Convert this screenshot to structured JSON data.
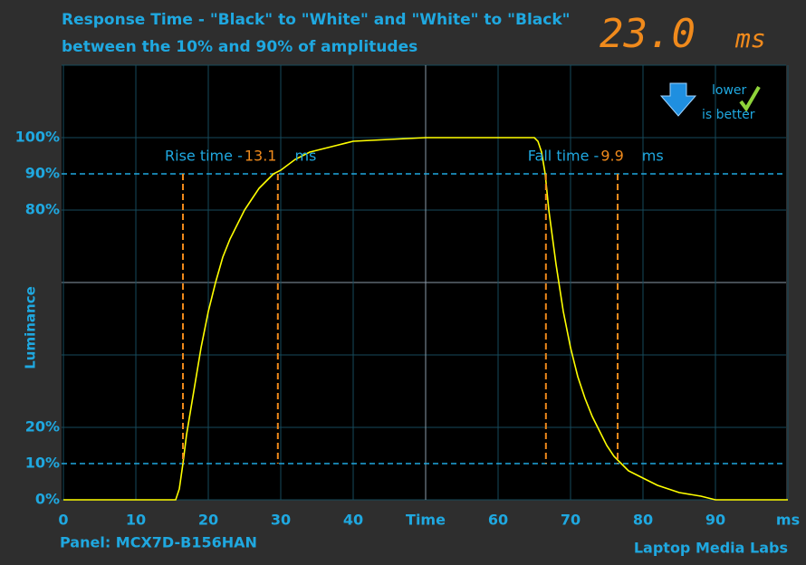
{
  "chart_data": {
    "type": "line",
    "title": "Response Time - \"Black\" to \"White\" and \"White\" to \"Black\"",
    "subtitle": "between the 10% and 90% of amplitudes",
    "result": {
      "value": 23,
      "label": "23.0",
      "unit": "ms"
    },
    "badge": [
      "lower",
      "is better"
    ],
    "y_label": "Luminance",
    "panel": "Panel: MCX7D-B156HAN",
    "credit": "Laptop Media Labs",
    "xlim": [
      0,
      100
    ],
    "ylim": [
      0,
      120
    ],
    "xticks": [
      0,
      10,
      20,
      30,
      40,
      {
        "value": 50,
        "label": "Time"
      },
      60,
      70,
      80,
      90,
      {
        "value": 100,
        "label": "ms"
      }
    ],
    "yticks": [
      {
        "value": 0,
        "label": "0%"
      },
      {
        "value": 10,
        "label": "10%"
      },
      {
        "value": 20,
        "label": "20%"
      },
      {
        "value": 80,
        "label": "80%"
      },
      {
        "value": 90,
        "label": "90%"
      },
      {
        "value": 100,
        "label": "100%"
      }
    ],
    "thresholds": [
      10,
      90
    ],
    "markers": [
      {
        "label": "Rise time - ",
        "value": 13.1,
        "unit": "ms",
        "start": 16.5,
        "end": 29.6
      },
      {
        "label": "Fall time - ",
        "value": 9.9,
        "unit": "ms",
        "start": 66.6,
        "end": 76.5
      }
    ],
    "x": [
      0,
      15,
      15.5,
      16,
      16.5,
      17,
      18,
      19,
      20,
      21,
      22,
      23,
      24,
      25,
      26,
      27,
      28,
      29,
      30,
      32,
      34,
      36,
      38,
      40,
      45,
      50,
      60,
      65,
      65.5,
      66,
      66.5,
      67,
      68,
      69,
      70,
      71,
      72,
      73,
      74,
      75,
      76,
      77,
      78,
      80,
      82,
      85,
      88,
      90,
      100
    ],
    "series": [
      {
        "color": "#ffff00",
        "values": [
          0,
          0,
          0,
          3,
          10,
          18,
          30,
          42,
          52,
          60,
          67,
          72,
          76,
          80,
          83,
          86,
          88,
          90,
          91,
          94,
          96,
          97,
          98,
          99,
          99.5,
          100,
          100,
          100,
          99,
          96,
          90,
          80,
          65,
          52,
          42,
          34,
          28,
          23,
          19,
          15,
          12,
          10,
          8,
          6,
          4,
          2,
          1,
          0,
          0
        ]
      }
    ]
  }
}
